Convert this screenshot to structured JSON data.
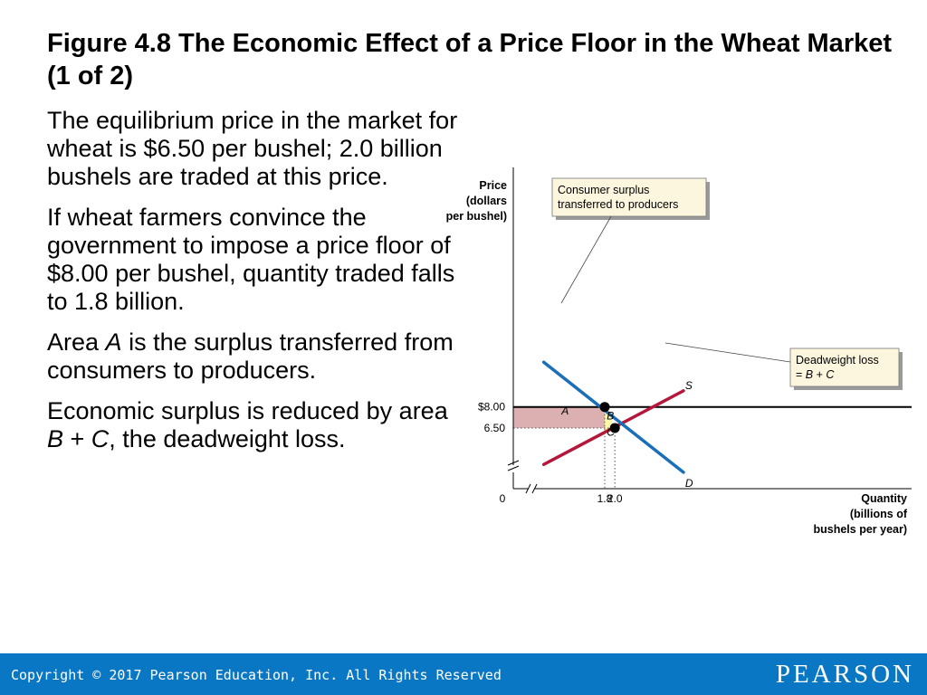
{
  "slide": {
    "title": "Figure 4.8 The Economic Effect of a Price Floor in the Wheat Market (1 of 2)",
    "bullets": [
      {
        "parts": [
          {
            "t": "The equilibrium price in the market for wheat is $6.50 per bushel; 2.0 billion bushels are traded at this price."
          }
        ]
      },
      {
        "parts": [
          {
            "t": "If wheat farmers convince the government to impose a price floor of $8.00 per bushel, quantity traded falls to 1.8 billion."
          }
        ]
      },
      {
        "parts": [
          {
            "t": "Area "
          },
          {
            "t": "A",
            "i": true
          },
          {
            "t": " is the surplus transferred from consumers to producers."
          }
        ]
      },
      {
        "parts": [
          {
            "t": "Economic surplus is reduced by area "
          },
          {
            "t": "B",
            "i": true
          },
          {
            "t": " + "
          },
          {
            "t": "C",
            "i": true
          },
          {
            "t": ", the deadweight loss."
          }
        ]
      }
    ]
  },
  "chart_data": {
    "type": "line",
    "ylabel": [
      "Price",
      "(dollars",
      "per bushel)"
    ],
    "xlabel": [
      "Quantity",
      "(billions of",
      "bushels per year)"
    ],
    "x_ticks": [
      {
        "v": 1.8,
        "label": "1.8"
      },
      {
        "v": 2.0,
        "label": "2.0"
      }
    ],
    "y_ticks": [
      {
        "v": 8.0,
        "label": "$8.00"
      },
      {
        "v": 6.5,
        "label": "6.50"
      }
    ],
    "origin_label": "0",
    "price_floor": 8.0,
    "equilibrium": {
      "x": 2.0,
      "y": 6.5
    },
    "floor_point": {
      "x": 1.8,
      "y": 8.0
    },
    "series": [
      {
        "name": "S",
        "color": "#b5173a",
        "points": [
          [
            0.6,
            3.9
          ],
          [
            3.35,
            9.15
          ]
        ]
      },
      {
        "name": "D",
        "color": "#1a6fb8",
        "points": [
          [
            0.6,
            11.19
          ],
          [
            3.35,
            3.34
          ]
        ]
      }
    ],
    "areas": [
      {
        "name": "A",
        "color": "#dcafb1"
      },
      {
        "name": "B",
        "color": "#fdf7a7"
      },
      {
        "name": "C",
        "color": "#fdf7a7"
      }
    ],
    "callouts": {
      "consumer": [
        "Consumer surplus",
        "transferred to producers"
      ],
      "deadweight": {
        "line1": "Deadweight loss",
        "line2": [
          {
            "t": "= "
          },
          {
            "t": "B",
            "i": true
          },
          {
            "t": " + "
          },
          {
            "t": "C",
            "i": true
          }
        ]
      }
    }
  },
  "footer": {
    "copyright": "Copyright © 2017 Pearson Education, Inc. All Rights Reserved",
    "brand": "PEARSON",
    "color": "#0a77c4"
  }
}
